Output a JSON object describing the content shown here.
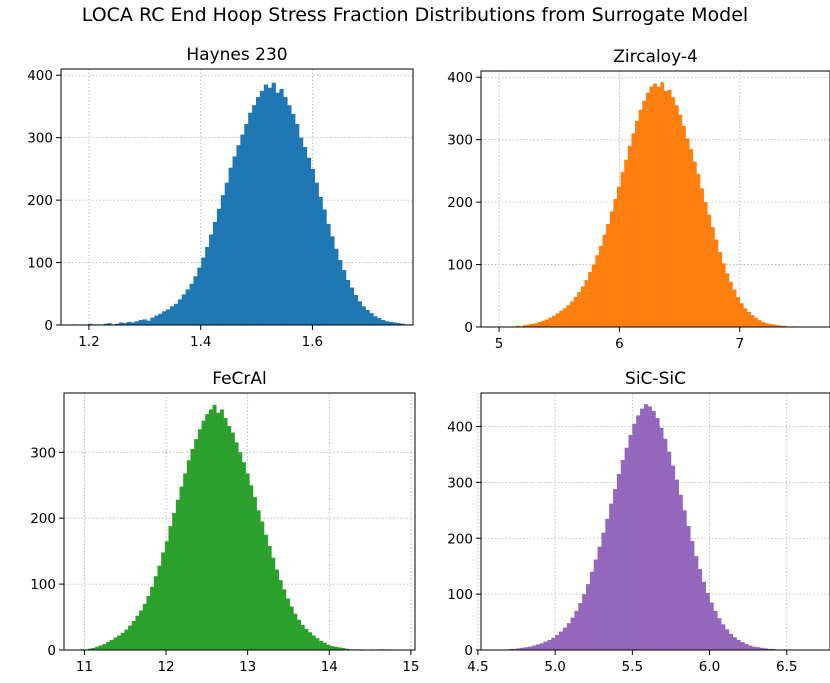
{
  "suptitle": "LOCA RC End Hoop Stress Fraction Distributions from Surrogate Model",
  "chart_data": [
    {
      "type": "bar",
      "subtype": "histogram",
      "title": "Haynes 230",
      "color": "#1f77b4",
      "grid": true,
      "xlim": [
        1.15,
        1.78
      ],
      "ylim": [
        0,
        410
      ],
      "xticks": [
        1.2,
        1.4,
        1.6
      ],
      "xtick_labels": [
        "1.2",
        "1.4",
        "1.6"
      ],
      "yticks": [
        0,
        100,
        200,
        300,
        400
      ],
      "bin_start": 1.17,
      "bin_width": 0.007,
      "counts": [
        1,
        0,
        0,
        0,
        2,
        1,
        1,
        0,
        2,
        3,
        1,
        2,
        4,
        3,
        5,
        4,
        6,
        8,
        9,
        7,
        12,
        15,
        18,
        22,
        25,
        30,
        34,
        41,
        49,
        57,
        66,
        78,
        92,
        108,
        125,
        145,
        165,
        186,
        208,
        228,
        252,
        270,
        288,
        305,
        322,
        340,
        352,
        365,
        375,
        385,
        380,
        388,
        372,
        378,
        365,
        352,
        338,
        322,
        300,
        285,
        268,
        250,
        228,
        205,
        185,
        162,
        142,
        122,
        104,
        88,
        72,
        60,
        48,
        38,
        30,
        24,
        19,
        14,
        11,
        8,
        6,
        5,
        4,
        3,
        2,
        1,
        1
      ]
    },
    {
      "type": "bar",
      "subtype": "histogram",
      "title": "Zircaloy-4",
      "color": "#ff7f0e",
      "grid": true,
      "xlim": [
        4.85,
        7.75
      ],
      "ylim": [
        0,
        410
      ],
      "xticks": [
        5,
        6,
        7
      ],
      "xtick_labels": [
        "5",
        "6",
        "7"
      ],
      "yticks": [
        0,
        100,
        200,
        300,
        400
      ],
      "bin_start": 4.93,
      "bin_width": 0.03,
      "counts": [
        1,
        0,
        0,
        1,
        0,
        1,
        1,
        2,
        1,
        3,
        4,
        5,
        6,
        8,
        10,
        12,
        15,
        18,
        22,
        26,
        30,
        35,
        41,
        48,
        56,
        65,
        75,
        88,
        100,
        115,
        130,
        148,
        165,
        185,
        205,
        225,
        248,
        268,
        290,
        310,
        330,
        348,
        362,
        375,
        385,
        390,
        385,
        392,
        378,
        380,
        368,
        355,
        340,
        322,
        302,
        285,
        265,
        245,
        222,
        200,
        180,
        160,
        140,
        120,
        102,
        86,
        72,
        60,
        48,
        38,
        30,
        24,
        19,
        15,
        11,
        8,
        6,
        5,
        4,
        3,
        2,
        2,
        1,
        1,
        1,
        0,
        1
      ]
    },
    {
      "type": "bar",
      "subtype": "histogram",
      "title": "FeCrAl",
      "color": "#2ca02c",
      "grid": true,
      "xlim": [
        10.75,
        15.05
      ],
      "ylim": [
        0,
        390
      ],
      "xticks": [
        11,
        12,
        13,
        14,
        15
      ],
      "xtick_labels": [
        "11",
        "12",
        "13",
        "14",
        "15"
      ],
      "yticks": [
        0,
        100,
        200,
        300
      ],
      "bin_start": 10.95,
      "bin_width": 0.045,
      "counts": [
        1,
        0,
        2,
        3,
        5,
        7,
        9,
        12,
        15,
        19,
        22,
        26,
        31,
        37,
        44,
        52,
        60,
        70,
        82,
        96,
        112,
        128,
        148,
        165,
        188,
        208,
        228,
        248,
        268,
        288,
        305,
        320,
        335,
        348,
        358,
        365,
        372,
        360,
        365,
        352,
        340,
        330,
        315,
        300,
        285,
        268,
        250,
        232,
        212,
        195,
        175,
        158,
        140,
        122,
        106,
        92,
        78,
        66,
        55,
        46,
        38,
        32,
        27,
        22,
        18,
        14,
        11,
        8,
        6,
        5,
        4,
        3,
        2,
        1,
        1,
        1,
        1,
        0,
        0,
        1,
        0,
        1,
        1,
        0,
        1
      ]
    },
    {
      "type": "bar",
      "subtype": "histogram",
      "title": "SiC-SiC",
      "color": "#9467bd",
      "grid": true,
      "xlim": [
        4.52,
        6.78
      ],
      "ylim": [
        0,
        460
      ],
      "xticks": [
        4.5,
        5.0,
        5.5,
        6.0,
        6.5
      ],
      "xtick_labels": [
        "4.5",
        "5.0",
        "5.5",
        "6.0",
        "6.5"
      ],
      "yticks": [
        0,
        100,
        200,
        300,
        400
      ],
      "bin_start": 4.6,
      "bin_width": 0.025,
      "counts": [
        1,
        0,
        1,
        1,
        2,
        2,
        3,
        4,
        5,
        6,
        8,
        10,
        12,
        15,
        18,
        22,
        27,
        33,
        40,
        48,
        58,
        70,
        84,
        100,
        118,
        140,
        162,
        185,
        210,
        235,
        262,
        288,
        315,
        340,
        362,
        385,
        405,
        420,
        432,
        440,
        436,
        428,
        415,
        398,
        378,
        355,
        330,
        305,
        278,
        250,
        222,
        195,
        168,
        145,
        122,
        102,
        85,
        70,
        57,
        46,
        37,
        29,
        23,
        18,
        14,
        11,
        8,
        6,
        5,
        4,
        3,
        2,
        2,
        1,
        1,
        1,
        0,
        1,
        0,
        1,
        0,
        1,
        0,
        1,
        1
      ]
    }
  ]
}
